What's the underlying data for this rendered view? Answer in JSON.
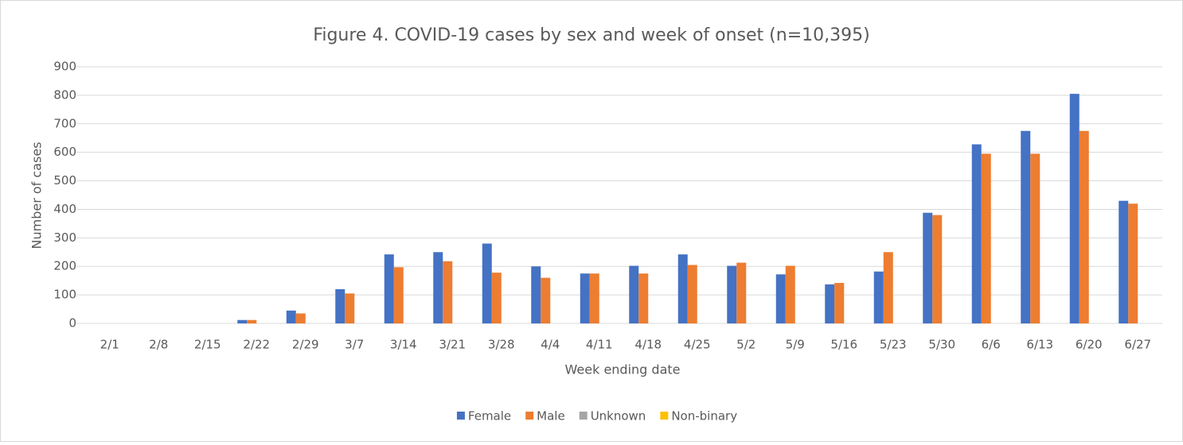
{
  "chart_data": {
    "type": "bar",
    "title": "Figure 4. COVID-19 cases by sex and week of onset (n=10,395)",
    "x_label": "Week ending date",
    "y_label": "Number of cases",
    "categories": [
      "2/1",
      "2/8",
      "2/15",
      "2/22",
      "2/29",
      "3/7",
      "3/14",
      "3/21",
      "3/28",
      "4/4",
      "4/11",
      "4/18",
      "4/25",
      "5/2",
      "5/9",
      "5/16",
      "5/23",
      "5/30",
      "6/6",
      "6/13",
      "6/20",
      "6/27"
    ],
    "series": [
      {
        "name": "Female",
        "color": "#4472c4",
        "values": [
          0,
          0,
          0,
          12,
          45,
          120,
          242,
          250,
          280,
          200,
          175,
          202,
          242,
          202,
          172,
          137,
          182,
          388,
          628,
          675,
          805,
          430
        ]
      },
      {
        "name": "Male",
        "color": "#ed7d31",
        "values": [
          0,
          0,
          0,
          12,
          35,
          105,
          197,
          218,
          178,
          160,
          175,
          175,
          205,
          213,
          202,
          142,
          250,
          380,
          595,
          595,
          675,
          420
        ]
      },
      {
        "name": "Unknown",
        "color": "#a5a5a5",
        "values": [
          0,
          0,
          0,
          0,
          0,
          0,
          0,
          0,
          0,
          0,
          0,
          0,
          0,
          0,
          0,
          0,
          0,
          0,
          0,
          0,
          0,
          0
        ]
      },
      {
        "name": "Non-binary",
        "color": "#ffc000",
        "values": [
          0,
          0,
          0,
          0,
          0,
          0,
          0,
          0,
          0,
          0,
          0,
          0,
          0,
          0,
          0,
          0,
          0,
          0,
          0,
          0,
          0,
          0
        ]
      }
    ],
    "ylim": [
      0,
      900
    ],
    "yticks": [
      0,
      100,
      200,
      300,
      400,
      500,
      600,
      700,
      800,
      900
    ],
    "grid": true,
    "legend": "bottom"
  }
}
